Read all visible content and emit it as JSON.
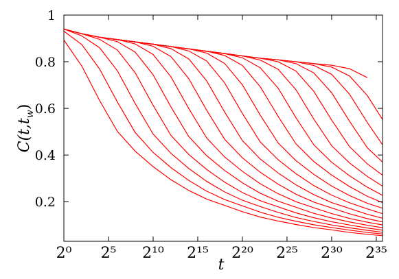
{
  "chart_data": {
    "type": "line",
    "color": "#ff0000",
    "xscale": "log2",
    "x_label": "t",
    "y_label": {
      "text": "C(t,t",
      "sub": "w",
      "end": ")"
    },
    "xlim": [
      1,
      55800000000
    ],
    "ylim": [
      0.03,
      1
    ],
    "xticks": [
      {
        "value": 1,
        "label": "2⁰"
      },
      {
        "value": 32,
        "label": "2⁵"
      },
      {
        "value": 1024,
        "label": "2¹⁰"
      },
      {
        "value": 32768,
        "label": "2¹⁵"
      },
      {
        "value": 1048576,
        "label": "2²⁰"
      },
      {
        "value": 33554432,
        "label": "2²⁵"
      },
      {
        "value": 1073741824,
        "label": "2³⁰"
      },
      {
        "value": 34359738368,
        "label": "2³⁵"
      }
    ],
    "yticks": [
      0.2,
      0.4,
      0.6,
      0.8,
      1
    ],
    "x": [
      1,
      4,
      16,
      64,
      256,
      1024,
      4096,
      16384,
      65536,
      262144,
      1048576,
      4194304,
      16777216,
      67108864,
      268435456,
      1073741824,
      4294967296,
      17179869184,
      68719476736
    ],
    "series": [
      {
        "values": [
          0.893,
          0.782,
          0.634,
          0.501,
          0.416,
          0.35,
          0.294,
          0.248,
          0.211,
          0.184,
          0.157,
          0.134,
          0.117,
          0.102,
          0.089,
          0.079,
          0.068,
          0.06,
          0.053
        ]
      },
      {
        "values": [
          0.931,
          0.874,
          0.769,
          0.627,
          0.496,
          0.411,
          0.346,
          0.291,
          0.245,
          0.209,
          0.182,
          0.155,
          0.133,
          0.116,
          0.101,
          0.089,
          0.078,
          0.068,
          0.06
        ]
      },
      {
        "values": [
          0.94,
          0.911,
          0.86,
          0.761,
          0.62,
          0.49,
          0.407,
          0.342,
          0.287,
          0.242,
          0.206,
          0.179,
          0.154,
          0.132,
          0.115,
          0.1,
          0.088,
          0.077,
          0.067
        ]
      },
      {
        "values": [
          0.94,
          0.92,
          0.896,
          0.85,
          0.752,
          0.613,
          0.484,
          0.402,
          0.338,
          0.284,
          0.239,
          0.204,
          0.178,
          0.152,
          0.131,
          0.114,
          0.1,
          0.087,
          0.076
        ]
      },
      {
        "values": [
          0.94,
          0.92,
          0.905,
          0.886,
          0.841,
          0.744,
          0.606,
          0.479,
          0.397,
          0.334,
          0.281,
          0.236,
          0.202,
          0.176,
          0.15,
          0.13,
          0.113,
          0.099,
          0.086
        ]
      },
      {
        "values": [
          0.94,
          0.92,
          0.905,
          0.895,
          0.876,
          0.831,
          0.735,
          0.599,
          0.473,
          0.392,
          0.33,
          0.277,
          0.234,
          0.2,
          0.174,
          0.149,
          0.128,
          0.112,
          0.098
        ]
      },
      {
        "values": [
          0.94,
          0.92,
          0.905,
          0.895,
          0.885,
          0.866,
          0.822,
          0.727,
          0.592,
          0.468,
          0.388,
          0.326,
          0.275,
          0.232,
          0.198,
          0.173,
          0.148,
          0.127,
          0.111
        ]
      },
      {
        "values": [
          0.94,
          0.92,
          0.905,
          0.895,
          0.885,
          0.875,
          0.856,
          0.812,
          0.718,
          0.585,
          0.462,
          0.383,
          0.323,
          0.272,
          0.23,
          0.196,
          0.171,
          0.146,
          0.126
        ]
      },
      {
        "values": [
          0.94,
          0.92,
          0.905,
          0.895,
          0.885,
          0.875,
          0.865,
          0.846,
          0.803,
          0.71,
          0.578,
          0.456,
          0.38,
          0.32,
          0.269,
          0.228,
          0.195,
          0.169,
          0.145
        ]
      },
      {
        "values": [
          0.94,
          0.92,
          0.905,
          0.895,
          0.885,
          0.875,
          0.865,
          0.855,
          0.837,
          0.793,
          0.701,
          0.571,
          0.452,
          0.376,
          0.317,
          0.267,
          0.226,
          0.193,
          0.168
        ]
      },
      {
        "values": [
          0.94,
          0.92,
          0.905,
          0.895,
          0.885,
          0.875,
          0.865,
          0.855,
          0.845,
          0.827,
          0.784,
          0.693,
          0.566,
          0.448,
          0.372,
          0.314,
          0.265,
          0.223,
          0.191
        ]
      },
      {
        "values": [
          0.94,
          0.92,
          0.905,
          0.895,
          0.885,
          0.875,
          0.865,
          0.855,
          0.845,
          0.835,
          0.817,
          0.774,
          0.687,
          0.56,
          0.444,
          0.369,
          0.311,
          0.262,
          0.221
        ]
      },
      {
        "values": [
          0.94,
          0.92,
          0.905,
          0.895,
          0.885,
          0.875,
          0.865,
          0.855,
          0.845,
          0.835,
          0.825,
          0.807,
          0.768,
          0.68,
          0.554,
          0.44,
          0.366,
          0.308,
          0.259
        ]
      },
      {
        "values": [
          0.94,
          0.92,
          0.905,
          0.895,
          0.885,
          0.875,
          0.865,
          0.855,
          0.845,
          0.835,
          0.825,
          0.815,
          0.8,
          0.76,
          0.673,
          0.55,
          0.436,
          0.362,
          0.305
        ]
      },
      {
        "values": [
          0.94,
          0.92,
          0.905,
          0.895,
          0.885,
          0.875,
          0.865,
          0.855,
          0.845,
          0.835,
          0.825,
          0.815,
          0.808,
          0.792,
          0.752,
          0.667,
          0.545,
          0.431,
          0.359
        ]
      },
      {
        "values": [
          0.94,
          0.92,
          0.905,
          0.895,
          0.885,
          0.875,
          0.865,
          0.855,
          0.845,
          0.835,
          0.825,
          0.815,
          0.808,
          0.8,
          0.784,
          0.746,
          0.661,
          0.539,
          0.427
        ]
      },
      {
        "values": [
          0.94,
          0.92,
          0.905,
          0.895,
          0.885,
          0.875,
          0.865,
          0.855,
          0.845,
          0.835,
          0.825,
          0.815,
          0.808,
          0.8,
          0.792,
          0.777,
          0.739,
          0.655,
          0.534
        ]
      },
      {
        "values": [
          0.94,
          0.92,
          0.905,
          0.895,
          0.885,
          0.875,
          0.865,
          0.855,
          0.845,
          0.835,
          0.825,
          0.815,
          0.808,
          0.8,
          0.792,
          0.785,
          0.77,
          0.732,
          null
        ]
      }
    ]
  }
}
